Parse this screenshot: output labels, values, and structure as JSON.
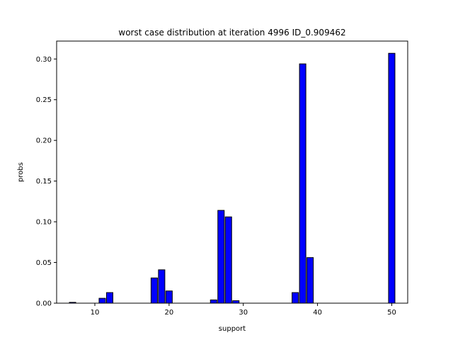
{
  "chart_data": {
    "type": "bar",
    "title": "worst case distribution at iteration 4996 ID_0.909462",
    "xlabel": "support",
    "ylabel": "probs",
    "xlim": [
      4.85,
      52.15
    ],
    "ylim": [
      0,
      0.322
    ],
    "xticks": [
      10,
      20,
      30,
      40,
      50
    ],
    "yticks": [
      0.0,
      0.05,
      0.1,
      0.15,
      0.2,
      0.25,
      0.3
    ],
    "ytick_labels": [
      "0.00",
      "0.05",
      "0.10",
      "0.15",
      "0.20",
      "0.25",
      "0.30"
    ],
    "bar_width": 0.86,
    "grid": false,
    "bar_color": "#0000ff",
    "edge_color": "#000000",
    "x": [
      7,
      11,
      12,
      18,
      19,
      20,
      26,
      27,
      28,
      29,
      37,
      38,
      39,
      50
    ],
    "values": [
      0.001,
      0.006,
      0.013,
      0.031,
      0.041,
      0.015,
      0.004,
      0.114,
      0.106,
      0.003,
      0.013,
      0.294,
      0.056,
      0.307
    ]
  }
}
